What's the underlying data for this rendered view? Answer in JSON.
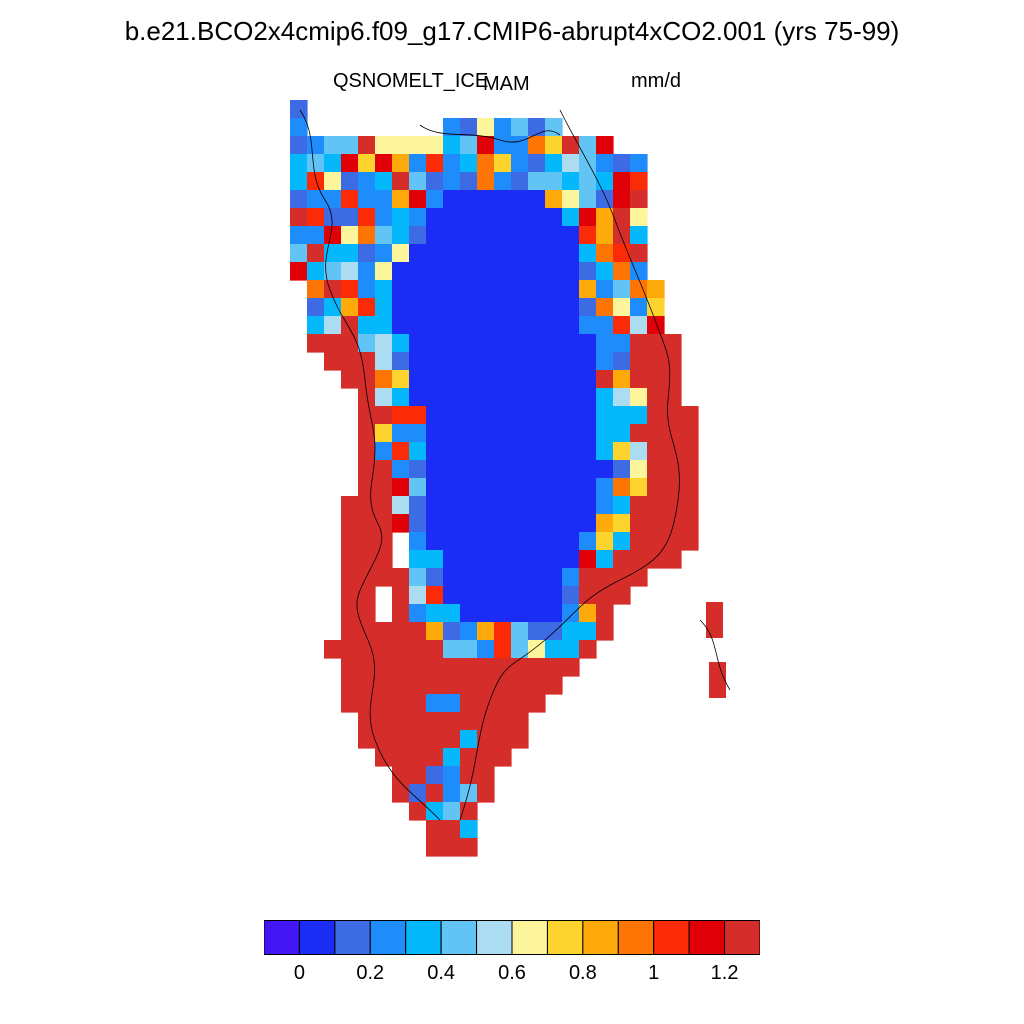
{
  "title": "b.e21.BCO2x4cmip6.f09_g17.CMIP6-abrupt4xCO2.001 (yrs 75-99)",
  "subtitle": {
    "variable": "QSNOMELT_ICE",
    "season": "MAM",
    "units": "mm/d"
  },
  "colorbar": {
    "colors": [
      "#4316f5",
      "#1b2cf4",
      "#3c6be4",
      "#1e8cfb",
      "#05b7fb",
      "#62c4f4",
      "#acdcf2",
      "#fdf59c",
      "#fdd42e",
      "#fdaa0a",
      "#fd7505",
      "#fc2b07",
      "#e00007",
      "#d52d2a"
    ],
    "tick_labels": [
      "0",
      "0.2",
      "0.4",
      "0.6",
      "0.8",
      "1",
      "1.2"
    ]
  },
  "chart_data": {
    "type": "heatmap",
    "title": "b.e21.BCO2x4cmip6.f09_g17.CMIP6-abrupt4xCO2.001 (yrs 75-99)",
    "variable": "QSNOMELT_ICE",
    "season": "MAM",
    "units": "mm/d",
    "region": "Greenland",
    "colorbar_levels": [
      0,
      0.1,
      0.2,
      0.3,
      0.4,
      0.5,
      0.6,
      0.7,
      0.8,
      0.9,
      1.0,
      1.1,
      1.2
    ],
    "value_pattern": {
      "interior_ice_sheet": "0 - 0.1",
      "margins_north_east": "0.1 - 1.2 (mixed)",
      "south_and_west_coast": "> 1.2"
    }
  }
}
